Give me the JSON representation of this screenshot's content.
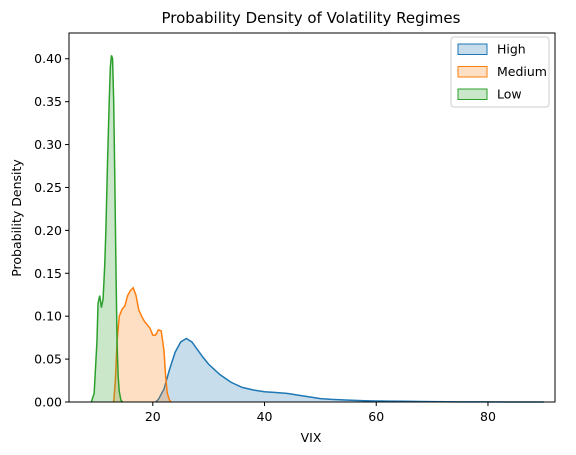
{
  "chart_data": {
    "type": "area",
    "title": "Probability Density of Volatility Regimes",
    "xlabel": "VIX",
    "ylabel": "Probability Density",
    "xlim": [
      5,
      92
    ],
    "ylim": [
      0,
      0.43
    ],
    "xticks": [
      20,
      40,
      60,
      80
    ],
    "yticks": [
      0.0,
      0.05,
      0.1,
      0.15,
      0.2,
      0.25,
      0.3,
      0.35,
      0.4
    ],
    "ytick_labels": [
      "0.00",
      "0.05",
      "0.10",
      "0.15",
      "0.20",
      "0.25",
      "0.30",
      "0.35",
      "0.40"
    ],
    "grid": false,
    "legend_position": "top-right",
    "series": [
      {
        "name": "High",
        "color": "#1f77b4",
        "x": [
          20.5,
          21,
          22,
          23,
          24,
          25,
          26,
          27,
          28,
          29,
          30,
          32,
          34,
          36,
          38,
          40,
          42,
          44,
          46,
          48,
          50,
          52,
          55,
          58,
          60,
          62,
          65,
          68,
          70,
          75,
          80,
          85,
          90
        ],
        "y": [
          0.0,
          0.003,
          0.015,
          0.038,
          0.058,
          0.07,
          0.074,
          0.07,
          0.061,
          0.052,
          0.044,
          0.032,
          0.023,
          0.017,
          0.014,
          0.012,
          0.011,
          0.01,
          0.008,
          0.006,
          0.004,
          0.003,
          0.0022,
          0.0015,
          0.0012,
          0.001,
          0.0009,
          0.0006,
          0.0004,
          0.0002,
          0.0001,
          3e-05,
          0.0
        ]
      },
      {
        "name": "Medium",
        "color": "#ff7f0e",
        "x": [
          13.0,
          13.3,
          13.6,
          14,
          14.5,
          15,
          15.5,
          16,
          16.5,
          17,
          17.5,
          18,
          18.5,
          19,
          19.5,
          20,
          20.5,
          21,
          21.5,
          22,
          22.3,
          22.6,
          23,
          23.3
        ],
        "y": [
          0.0,
          0.025,
          0.07,
          0.1,
          0.108,
          0.112,
          0.124,
          0.13,
          0.133,
          0.124,
          0.107,
          0.1,
          0.094,
          0.09,
          0.086,
          0.078,
          0.078,
          0.084,
          0.083,
          0.06,
          0.03,
          0.01,
          0.002,
          0.0
        ]
      },
      {
        "name": "Low",
        "color": "#2ca02c",
        "x": [
          9.0,
          9.5,
          10.0,
          10.2,
          10.5,
          10.8,
          11.1,
          11.4,
          11.6,
          11.9,
          12.2,
          12.4,
          12.6,
          12.8,
          13.0,
          13.2,
          13.4,
          13.6,
          13.8,
          14.0,
          14.3,
          14.6
        ],
        "y": [
          0.0,
          0.01,
          0.07,
          0.115,
          0.124,
          0.11,
          0.12,
          0.16,
          0.2,
          0.28,
          0.35,
          0.39,
          0.404,
          0.4,
          0.35,
          0.26,
          0.16,
          0.07,
          0.03,
          0.012,
          0.002,
          0.0
        ]
      }
    ]
  }
}
